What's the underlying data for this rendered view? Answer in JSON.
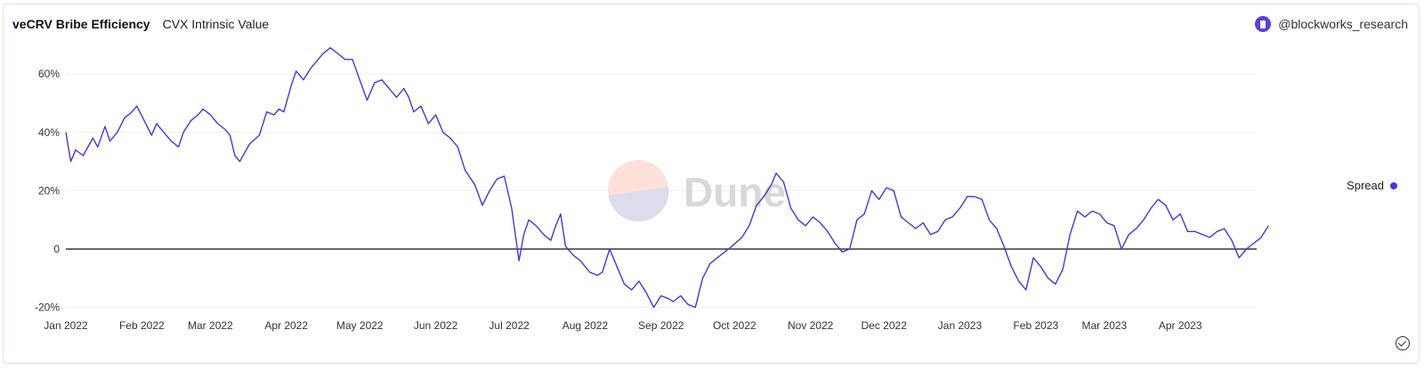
{
  "header": {
    "title": "veCRV Bribe Efficiency",
    "subtitle": "CVX Intrinsic Value",
    "author": "@blockworks_research"
  },
  "watermark": {
    "text": "Dune"
  },
  "colors": {
    "series": "#4a35d6",
    "zero_line": "#111111",
    "grid": "#eeeeee"
  },
  "icons": {
    "author": "blockworks-avatar-icon",
    "check": "check-circle-icon"
  },
  "chart_data": {
    "type": "line",
    "xlabel": "",
    "ylabel": "",
    "x_ticks": [
      "Jan 2022",
      "Feb 2022",
      "Mar 2022",
      "Apr 2022",
      "May 2022",
      "Jun 2022",
      "Jul 2022",
      "Aug 2022",
      "Sep 2022",
      "Oct 2022",
      "Nov 2022",
      "Dec 2022",
      "Jan 2023",
      "Feb 2023",
      "Mar 2023",
      "Apr 2023"
    ],
    "y_ticks": [
      {
        "value": -20,
        "label": "-20%"
      },
      {
        "value": 0,
        "label": "0"
      },
      {
        "value": 20,
        "label": "20%"
      },
      {
        "value": 40,
        "label": "40%"
      },
      {
        "value": 60,
        "label": "60%"
      }
    ],
    "ylim": [
      -22,
      70
    ],
    "xlim": [
      "2022-01-01",
      "2023-04-30"
    ],
    "grid": true,
    "legend": "right",
    "series": [
      {
        "name": "Spread",
        "points": [
          [
            "2022-01-01",
            40
          ],
          [
            "2022-01-03",
            30
          ],
          [
            "2022-01-05",
            34
          ],
          [
            "2022-01-08",
            32
          ],
          [
            "2022-01-12",
            38
          ],
          [
            "2022-01-14",
            35
          ],
          [
            "2022-01-17",
            42
          ],
          [
            "2022-01-19",
            37
          ],
          [
            "2022-01-22",
            40
          ],
          [
            "2022-01-25",
            45
          ],
          [
            "2022-01-28",
            47
          ],
          [
            "2022-01-30",
            49
          ],
          [
            "2022-02-02",
            44
          ],
          [
            "2022-02-05",
            39
          ],
          [
            "2022-02-07",
            43
          ],
          [
            "2022-02-10",
            40
          ],
          [
            "2022-02-13",
            37
          ],
          [
            "2022-02-16",
            35
          ],
          [
            "2022-02-18",
            40
          ],
          [
            "2022-02-21",
            44
          ],
          [
            "2022-02-24",
            46
          ],
          [
            "2022-02-26",
            48
          ],
          [
            "2022-03-01",
            46
          ],
          [
            "2022-03-04",
            43
          ],
          [
            "2022-03-07",
            41
          ],
          [
            "2022-03-09",
            39
          ],
          [
            "2022-03-11",
            32
          ],
          [
            "2022-03-13",
            30
          ],
          [
            "2022-03-15",
            33
          ],
          [
            "2022-03-17",
            36
          ],
          [
            "2022-03-21",
            39
          ],
          [
            "2022-03-24",
            47
          ],
          [
            "2022-03-27",
            46
          ],
          [
            "2022-03-29",
            48
          ],
          [
            "2022-03-31",
            47
          ],
          [
            "2022-04-03",
            56
          ],
          [
            "2022-04-05",
            61
          ],
          [
            "2022-04-08",
            58
          ],
          [
            "2022-04-11",
            62
          ],
          [
            "2022-04-14",
            65
          ],
          [
            "2022-04-16",
            67
          ],
          [
            "2022-04-19",
            69
          ],
          [
            "2022-04-22",
            67
          ],
          [
            "2022-04-25",
            65
          ],
          [
            "2022-04-28",
            65
          ],
          [
            "2022-05-01",
            58
          ],
          [
            "2022-05-04",
            51
          ],
          [
            "2022-05-07",
            57
          ],
          [
            "2022-05-10",
            58
          ],
          [
            "2022-05-13",
            55
          ],
          [
            "2022-05-16",
            52
          ],
          [
            "2022-05-19",
            55
          ],
          [
            "2022-05-21",
            52
          ],
          [
            "2022-05-23",
            47
          ],
          [
            "2022-05-26",
            49
          ],
          [
            "2022-05-29",
            43
          ],
          [
            "2022-06-01",
            46
          ],
          [
            "2022-06-04",
            40
          ],
          [
            "2022-06-07",
            38
          ],
          [
            "2022-06-10",
            35
          ],
          [
            "2022-06-13",
            27
          ],
          [
            "2022-06-17",
            22
          ],
          [
            "2022-06-20",
            15
          ],
          [
            "2022-06-23",
            20
          ],
          [
            "2022-06-26",
            24
          ],
          [
            "2022-06-29",
            25
          ],
          [
            "2022-07-02",
            14
          ],
          [
            "2022-07-05",
            -4
          ],
          [
            "2022-07-07",
            5
          ],
          [
            "2022-07-09",
            10
          ],
          [
            "2022-07-12",
            8
          ],
          [
            "2022-07-15",
            5
          ],
          [
            "2022-07-18",
            3
          ],
          [
            "2022-07-20",
            8
          ],
          [
            "2022-07-22",
            12
          ],
          [
            "2022-07-24",
            1
          ],
          [
            "2022-07-27",
            -2
          ],
          [
            "2022-07-30",
            -4
          ],
          [
            "2022-08-03",
            -8
          ],
          [
            "2022-08-06",
            -9
          ],
          [
            "2022-08-08",
            -8
          ],
          [
            "2022-08-11",
            0
          ],
          [
            "2022-08-14",
            -6
          ],
          [
            "2022-08-17",
            -12
          ],
          [
            "2022-08-20",
            -14
          ],
          [
            "2022-08-23",
            -11
          ],
          [
            "2022-08-26",
            -15
          ],
          [
            "2022-08-29",
            -20
          ],
          [
            "2022-09-01",
            -16
          ],
          [
            "2022-09-04",
            -17
          ],
          [
            "2022-09-06",
            -18
          ],
          [
            "2022-09-09",
            -16
          ],
          [
            "2022-09-12",
            -19
          ],
          [
            "2022-09-15",
            -20
          ],
          [
            "2022-09-18",
            -10
          ],
          [
            "2022-09-21",
            -5
          ],
          [
            "2022-09-24",
            -3
          ],
          [
            "2022-09-27",
            -1
          ],
          [
            "2022-09-30",
            1
          ],
          [
            "2022-10-04",
            4
          ],
          [
            "2022-10-07",
            8
          ],
          [
            "2022-10-10",
            15
          ],
          [
            "2022-10-13",
            18
          ],
          [
            "2022-10-16",
            22
          ],
          [
            "2022-10-18",
            26
          ],
          [
            "2022-10-21",
            23
          ],
          [
            "2022-10-24",
            14
          ],
          [
            "2022-10-27",
            10
          ],
          [
            "2022-10-30",
            8
          ],
          [
            "2022-11-02",
            11
          ],
          [
            "2022-11-05",
            9
          ],
          [
            "2022-11-08",
            6
          ],
          [
            "2022-11-11",
            2
          ],
          [
            "2022-11-14",
            -1
          ],
          [
            "2022-11-17",
            0
          ],
          [
            "2022-11-20",
            10
          ],
          [
            "2022-11-23",
            12
          ],
          [
            "2022-11-26",
            20
          ],
          [
            "2022-11-29",
            17
          ],
          [
            "2022-12-02",
            21
          ],
          [
            "2022-12-05",
            20
          ],
          [
            "2022-12-08",
            11
          ],
          [
            "2022-12-11",
            9
          ],
          [
            "2022-12-14",
            7
          ],
          [
            "2022-12-17",
            9
          ],
          [
            "2022-12-20",
            5
          ],
          [
            "2022-12-23",
            6
          ],
          [
            "2022-12-26",
            10
          ],
          [
            "2022-12-29",
            11
          ],
          [
            "2023-01-01",
            14
          ],
          [
            "2023-01-04",
            18
          ],
          [
            "2023-01-07",
            18
          ],
          [
            "2023-01-10",
            17
          ],
          [
            "2023-01-13",
            10
          ],
          [
            "2023-01-16",
            7
          ],
          [
            "2023-01-19",
            1
          ],
          [
            "2023-01-22",
            -6
          ],
          [
            "2023-01-25",
            -11
          ],
          [
            "2023-01-28",
            -14
          ],
          [
            "2023-01-31",
            -3
          ],
          [
            "2023-02-03",
            -6
          ],
          [
            "2023-02-06",
            -10
          ],
          [
            "2023-02-09",
            -12
          ],
          [
            "2023-02-12",
            -7
          ],
          [
            "2023-02-15",
            5
          ],
          [
            "2023-02-18",
            13
          ],
          [
            "2023-02-21",
            11
          ],
          [
            "2023-02-24",
            13
          ],
          [
            "2023-02-27",
            12
          ],
          [
            "2023-03-02",
            9
          ],
          [
            "2023-03-05",
            8
          ],
          [
            "2023-03-08",
            0
          ],
          [
            "2023-03-11",
            5
          ],
          [
            "2023-03-14",
            7
          ],
          [
            "2023-03-17",
            10
          ],
          [
            "2023-03-20",
            14
          ],
          [
            "2023-03-23",
            17
          ],
          [
            "2023-03-26",
            15
          ],
          [
            "2023-03-29",
            10
          ],
          [
            "2023-04-01",
            12
          ],
          [
            "2023-04-04",
            6
          ],
          [
            "2023-04-07",
            6
          ],
          [
            "2023-04-10",
            5
          ],
          [
            "2023-04-13",
            4
          ],
          [
            "2023-04-16",
            6
          ],
          [
            "2023-04-19",
            7
          ],
          [
            "2023-04-22",
            3
          ],
          [
            "2023-04-25",
            -3
          ],
          [
            "2023-04-28",
            0
          ],
          [
            "2023-05-01",
            2
          ],
          [
            "2023-05-04",
            4
          ],
          [
            "2023-05-07",
            8
          ]
        ]
      }
    ]
  }
}
